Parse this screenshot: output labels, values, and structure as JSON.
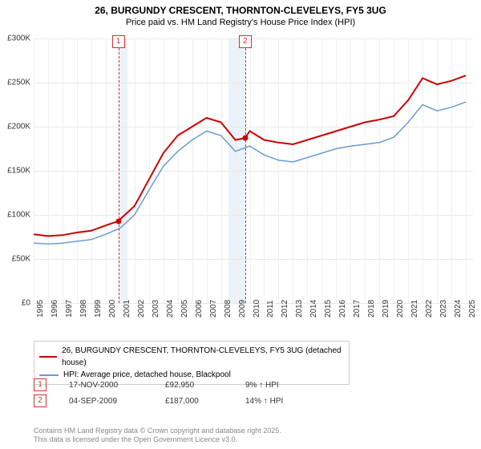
{
  "title_line1": "26, BURGUNDY CRESCENT, THORNTON-CLEVELEYS, FY5 3UG",
  "title_line2": "Price paid vs. HM Land Registry's House Price Index (HPI)",
  "chart": {
    "type": "line",
    "background_color": "#ffffff",
    "grid_color": "#e8e8e8",
    "shaded_color": "#eaf2fa",
    "x_years": [
      1995,
      1996,
      1997,
      1998,
      1999,
      2000,
      2001,
      2002,
      2003,
      2004,
      2005,
      2006,
      2007,
      2008,
      2009,
      2010,
      2011,
      2012,
      2013,
      2014,
      2015,
      2016,
      2017,
      2018,
      2019,
      2020,
      2021,
      2022,
      2023,
      2024,
      2025
    ],
    "xlim": [
      1995,
      2025.5
    ],
    "ylim": [
      0,
      300000
    ],
    "ytick_step": 50000,
    "y_labels": [
      "£0",
      "£50K",
      "£100K",
      "£150K",
      "£200K",
      "£250K",
      "£300K"
    ],
    "series": [
      {
        "name": "26, BURGUNDY CRESCENT, THORNTON-CLEVELEYS, FY5 3UG (detached house)",
        "color": "#cc0000",
        "line_width": 2,
        "points": [
          [
            1995,
            78000
          ],
          [
            1996,
            76000
          ],
          [
            1997,
            77000
          ],
          [
            1998,
            80000
          ],
          [
            1999,
            82000
          ],
          [
            2000,
            88000
          ],
          [
            2000.88,
            92950
          ],
          [
            2001,
            95000
          ],
          [
            2002,
            110000
          ],
          [
            2003,
            140000
          ],
          [
            2004,
            170000
          ],
          [
            2005,
            190000
          ],
          [
            2006,
            200000
          ],
          [
            2007,
            210000
          ],
          [
            2008,
            205000
          ],
          [
            2009,
            185000
          ],
          [
            2009.68,
            187000
          ],
          [
            2010,
            195000
          ],
          [
            2011,
            185000
          ],
          [
            2012,
            182000
          ],
          [
            2013,
            180000
          ],
          [
            2014,
            185000
          ],
          [
            2015,
            190000
          ],
          [
            2016,
            195000
          ],
          [
            2017,
            200000
          ],
          [
            2018,
            205000
          ],
          [
            2019,
            208000
          ],
          [
            2020,
            212000
          ],
          [
            2021,
            230000
          ],
          [
            2022,
            255000
          ],
          [
            2023,
            248000
          ],
          [
            2024,
            252000
          ],
          [
            2025,
            258000
          ]
        ]
      },
      {
        "name": "HPI: Average price, detached house, Blackpool",
        "color": "#6b9bd1",
        "line_width": 1.5,
        "points": [
          [
            1995,
            68000
          ],
          [
            1996,
            67000
          ],
          [
            1997,
            68000
          ],
          [
            1998,
            70000
          ],
          [
            1999,
            72000
          ],
          [
            2000,
            78000
          ],
          [
            2001,
            85000
          ],
          [
            2002,
            100000
          ],
          [
            2003,
            128000
          ],
          [
            2004,
            155000
          ],
          [
            2005,
            172000
          ],
          [
            2006,
            185000
          ],
          [
            2007,
            195000
          ],
          [
            2008,
            190000
          ],
          [
            2009,
            172000
          ],
          [
            2010,
            178000
          ],
          [
            2011,
            168000
          ],
          [
            2012,
            162000
          ],
          [
            2013,
            160000
          ],
          [
            2014,
            165000
          ],
          [
            2015,
            170000
          ],
          [
            2016,
            175000
          ],
          [
            2017,
            178000
          ],
          [
            2018,
            180000
          ],
          [
            2019,
            182000
          ],
          [
            2020,
            188000
          ],
          [
            2021,
            205000
          ],
          [
            2022,
            225000
          ],
          [
            2023,
            218000
          ],
          [
            2024,
            222000
          ],
          [
            2025,
            228000
          ]
        ]
      }
    ],
    "shaded_ranges": [
      [
        2000.88,
        2001.5
      ],
      [
        2008.5,
        2009.68
      ]
    ],
    "sale_markers": [
      {
        "n": 1,
        "year": 2000.88,
        "value": 92950
      },
      {
        "n": 2,
        "year": 2009.68,
        "value": 187000
      }
    ]
  },
  "legend_items": [
    {
      "color": "#cc0000",
      "label": "26, BURGUNDY CRESCENT, THORNTON-CLEVELEYS, FY5 3UG (detached house)"
    },
    {
      "color": "#6b9bd1",
      "label": "HPI: Average price, detached house, Blackpool"
    }
  ],
  "sales": [
    {
      "n": "1",
      "date": "17-NOV-2000",
      "price": "£92,950",
      "hpi": "9% ↑ HPI"
    },
    {
      "n": "2",
      "date": "04-SEP-2009",
      "price": "£187,000",
      "hpi": "14% ↑ HPI"
    }
  ],
  "copyright_line1": "Contains HM Land Registry data © Crown copyright and database right 2025.",
  "copyright_line2": "This data is licensed under the Open Government Licence v3.0."
}
